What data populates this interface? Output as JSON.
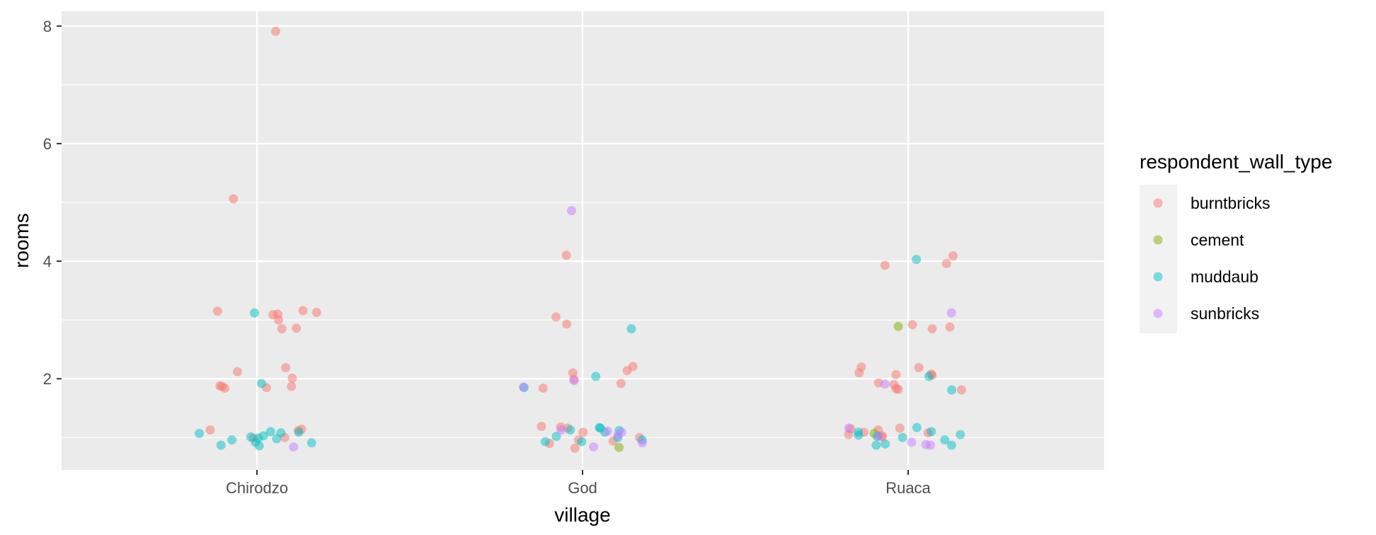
{
  "chart_data": {
    "type": "scatter",
    "jitter": true,
    "xlabel": "village",
    "ylabel": "rooms",
    "categories": [
      "Chirodzo",
      "God",
      "Ruaca"
    ],
    "ylim": [
      0.45,
      8.25
    ],
    "yticks": [
      2,
      4,
      6,
      8
    ],
    "grid": true,
    "legend": {
      "title": "respondent_wall_type",
      "placement": "right",
      "entries": [
        {
          "name": "burntbricks",
          "color": "#F8766D"
        },
        {
          "name": "cement",
          "color": "#7CAE00"
        },
        {
          "name": "muddaub",
          "color": "#00BFC4"
        },
        {
          "name": "sunbricks",
          "color": "#C77CFF"
        }
      ]
    },
    "point_opacity": 0.5,
    "series": [
      {
        "name": "burntbricks",
        "color": "#F8766D",
        "points": [
          {
            "x": "Chirodzo",
            "y": 7.91
          },
          {
            "x": "Chirodzo",
            "y": 5.06
          },
          {
            "x": "Chirodzo",
            "y": 3.09
          },
          {
            "x": "Chirodzo",
            "y": 3.13
          },
          {
            "x": "Chirodzo",
            "y": 3.0
          },
          {
            "x": "Chirodzo",
            "y": 3.1
          },
          {
            "x": "Chirodzo",
            "y": 3.15
          },
          {
            "x": "Chirodzo",
            "y": 3.16
          },
          {
            "x": "Chirodzo",
            "y": 2.85
          },
          {
            "x": "Chirodzo",
            "y": 2.86
          },
          {
            "x": "Chirodzo",
            "y": 2.19
          },
          {
            "x": "Chirodzo",
            "y": 2.12
          },
          {
            "x": "Chirodzo",
            "y": 2.01
          },
          {
            "x": "Chirodzo",
            "y": 1.88
          },
          {
            "x": "Chirodzo",
            "y": 1.85
          },
          {
            "x": "Chirodzo",
            "y": 1.84
          },
          {
            "x": "Chirodzo",
            "y": 1.87
          },
          {
            "x": "Chirodzo",
            "y": 1.87
          },
          {
            "x": "Chirodzo",
            "y": 1.14
          },
          {
            "x": "Chirodzo",
            "y": 1.12
          },
          {
            "x": "Chirodzo",
            "y": 1.13
          },
          {
            "x": "Chirodzo",
            "y": 0.99
          },
          {
            "x": "Chirodzo",
            "y": 1.0
          },
          {
            "x": "God",
            "y": 4.1
          },
          {
            "x": "God",
            "y": 3.05
          },
          {
            "x": "God",
            "y": 2.93
          },
          {
            "x": "God",
            "y": 2.21
          },
          {
            "x": "God",
            "y": 2.14
          },
          {
            "x": "God",
            "y": 2.1
          },
          {
            "x": "God",
            "y": 1.99
          },
          {
            "x": "God",
            "y": 1.92
          },
          {
            "x": "God",
            "y": 1.84
          },
          {
            "x": "God",
            "y": 1.19
          },
          {
            "x": "God",
            "y": 1.18
          },
          {
            "x": "God",
            "y": 1.16
          },
          {
            "x": "God",
            "y": 1.09
          },
          {
            "x": "God",
            "y": 1.0
          },
          {
            "x": "God",
            "y": 0.96
          },
          {
            "x": "God",
            "y": 0.94
          },
          {
            "x": "God",
            "y": 0.9
          },
          {
            "x": "God",
            "y": 0.82
          },
          {
            "x": "Ruaca",
            "y": 4.09
          },
          {
            "x": "Ruaca",
            "y": 3.96
          },
          {
            "x": "Ruaca",
            "y": 3.93
          },
          {
            "x": "Ruaca",
            "y": 2.92
          },
          {
            "x": "Ruaca",
            "y": 2.88
          },
          {
            "x": "Ruaca",
            "y": 2.85
          },
          {
            "x": "Ruaca",
            "y": 2.2
          },
          {
            "x": "Ruaca",
            "y": 2.19
          },
          {
            "x": "Ruaca",
            "y": 2.1
          },
          {
            "x": "Ruaca",
            "y": 2.08
          },
          {
            "x": "Ruaca",
            "y": 2.07
          },
          {
            "x": "Ruaca",
            "y": 2.06
          },
          {
            "x": "Ruaca",
            "y": 1.93
          },
          {
            "x": "Ruaca",
            "y": 1.9
          },
          {
            "x": "Ruaca",
            "y": 1.83
          },
          {
            "x": "Ruaca",
            "y": 1.82
          },
          {
            "x": "Ruaca",
            "y": 1.81
          },
          {
            "x": "Ruaca",
            "y": 1.16
          },
          {
            "x": "Ruaca",
            "y": 1.15
          },
          {
            "x": "Ruaca",
            "y": 1.13
          },
          {
            "x": "Ruaca",
            "y": 1.09
          },
          {
            "x": "Ruaca",
            "y": 1.08
          },
          {
            "x": "Ruaca",
            "y": 1.05
          },
          {
            "x": "Ruaca",
            "y": 1.03
          },
          {
            "x": "Ruaca",
            "y": 1.01
          }
        ]
      },
      {
        "name": "cement",
        "color": "#7CAE00",
        "points": [
          {
            "x": "Ruaca",
            "y": 2.89
          },
          {
            "x": "Ruaca",
            "y": 1.07
          },
          {
            "x": "God",
            "y": 0.83
          }
        ]
      },
      {
        "name": "muddaub",
        "color": "#00BFC4",
        "points": [
          {
            "x": "Chirodzo",
            "y": 3.12
          },
          {
            "x": "Chirodzo",
            "y": 1.92
          },
          {
            "x": "Chirodzo",
            "y": 1.09
          },
          {
            "x": "Chirodzo",
            "y": 1.1
          },
          {
            "x": "Chirodzo",
            "y": 1.08
          },
          {
            "x": "Chirodzo",
            "y": 1.07
          },
          {
            "x": "Chirodzo",
            "y": 1.03
          },
          {
            "x": "Chirodzo",
            "y": 1.01
          },
          {
            "x": "Chirodzo",
            "y": 0.99
          },
          {
            "x": "Chirodzo",
            "y": 0.98
          },
          {
            "x": "Chirodzo",
            "y": 0.96
          },
          {
            "x": "Chirodzo",
            "y": 0.92
          },
          {
            "x": "Chirodzo",
            "y": 0.91
          },
          {
            "x": "Chirodzo",
            "y": 0.87
          },
          {
            "x": "Chirodzo",
            "y": 0.86
          },
          {
            "x": "God",
            "y": 2.85
          },
          {
            "x": "God",
            "y": 2.04
          },
          {
            "x": "God",
            "y": 1.85
          },
          {
            "x": "God",
            "y": 1.17
          },
          {
            "x": "God",
            "y": 1.16
          },
          {
            "x": "God",
            "y": 1.13
          },
          {
            "x": "God",
            "y": 1.12
          },
          {
            "x": "God",
            "y": 1.09
          },
          {
            "x": "God",
            "y": 1.02
          },
          {
            "x": "God",
            "y": 1.0
          },
          {
            "x": "God",
            "y": 0.96
          },
          {
            "x": "God",
            "y": 0.93
          },
          {
            "x": "God",
            "y": 0.93
          },
          {
            "x": "Ruaca",
            "y": 4.03
          },
          {
            "x": "Ruaca",
            "y": 2.04
          },
          {
            "x": "Ruaca",
            "y": 1.81
          },
          {
            "x": "Ruaca",
            "y": 1.17
          },
          {
            "x": "Ruaca",
            "y": 1.1
          },
          {
            "x": "Ruaca",
            "y": 1.09
          },
          {
            "x": "Ruaca",
            "y": 1.05
          },
          {
            "x": "Ruaca",
            "y": 1.04
          },
          {
            "x": "Ruaca",
            "y": 1.02
          },
          {
            "x": "Ruaca",
            "y": 1.0
          },
          {
            "x": "Ruaca",
            "y": 0.96
          },
          {
            "x": "Ruaca",
            "y": 0.89
          },
          {
            "x": "Ruaca",
            "y": 0.87
          },
          {
            "x": "Ruaca",
            "y": 0.87
          }
        ]
      },
      {
        "name": "sunbricks",
        "color": "#C77CFF",
        "points": [
          {
            "x": "Chirodzo",
            "y": 0.84
          },
          {
            "x": "God",
            "y": 4.86
          },
          {
            "x": "God",
            "y": 1.97
          },
          {
            "x": "God",
            "y": 1.86
          },
          {
            "x": "God",
            "y": 1.13
          },
          {
            "x": "God",
            "y": 1.11
          },
          {
            "x": "God",
            "y": 1.09
          },
          {
            "x": "God",
            "y": 1.04
          },
          {
            "x": "God",
            "y": 0.91
          },
          {
            "x": "God",
            "y": 0.84
          },
          {
            "x": "Ruaca",
            "y": 3.12
          },
          {
            "x": "Ruaca",
            "y": 1.91
          },
          {
            "x": "Ruaca",
            "y": 1.16
          },
          {
            "x": "Ruaca",
            "y": 1.03
          },
          {
            "x": "Ruaca",
            "y": 0.92
          },
          {
            "x": "Ruaca",
            "y": 0.88
          },
          {
            "x": "Ruaca",
            "y": 0.87
          }
        ]
      }
    ]
  }
}
